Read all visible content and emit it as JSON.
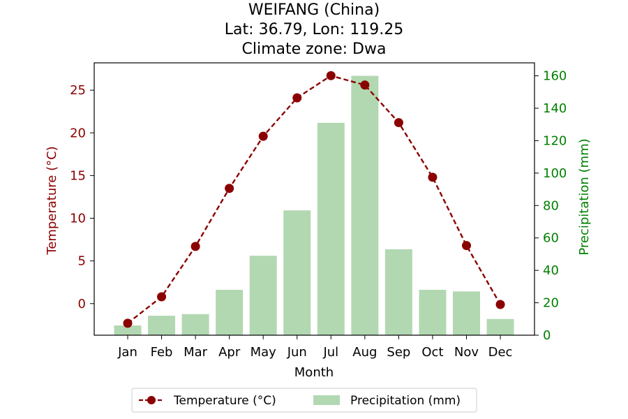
{
  "chart_data": {
    "type": "bar+line",
    "title_lines": [
      "WEIFANG (China)",
      "Lat: 36.79, Lon: 119.25",
      "Climate zone: Dwa"
    ],
    "categories": [
      "Jan",
      "Feb",
      "Mar",
      "Apr",
      "May",
      "Jun",
      "Jul",
      "Aug",
      "Sep",
      "Oct",
      "Nov",
      "Dec"
    ],
    "xlabel": "Month",
    "temperature": {
      "name": "Temperature (°C)",
      "axis_label": "Temperature (°C)",
      "color": "#8b0000",
      "values": [
        -2.3,
        0.8,
        6.7,
        13.5,
        19.6,
        24.1,
        26.7,
        25.6,
        21.2,
        14.8,
        6.8,
        -0.1
      ],
      "ylim": [
        -3.7,
        28.2
      ],
      "ticks": [
        0,
        5,
        10,
        15,
        20,
        25
      ]
    },
    "precipitation": {
      "name": "Precipitation (mm)",
      "axis_label": "Precipitation (mm)",
      "color": "#008000",
      "bar_color": "#b2d8b2",
      "values": [
        6,
        12,
        13,
        28,
        49,
        77,
        131,
        160,
        53,
        28,
        27,
        10
      ],
      "ylim": [
        0,
        168
      ],
      "ticks": [
        0,
        20,
        40,
        60,
        80,
        100,
        120,
        140,
        160
      ]
    },
    "legend_placement": "bottom-center",
    "grid": false
  }
}
